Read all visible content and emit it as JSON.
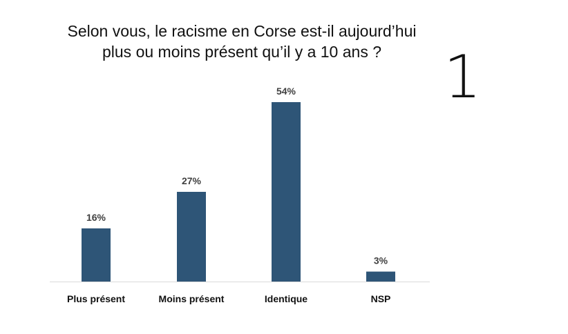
{
  "slide": {
    "title_line1": "Selon vous, le racisme en Corse est-il aujourd’hui",
    "title_line2": "plus ou moins présent qu’il y a 10 ans ?",
    "page_number": "1"
  },
  "chart_data": {
    "type": "bar",
    "title": "Selon vous, le racisme en Corse est-il aujourd’hui plus ou moins présent qu’il y a 10 ans ?",
    "categories": [
      "Plus présent",
      "Moins présent",
      "Identique",
      "NSP"
    ],
    "values": [
      16,
      27,
      54,
      3
    ],
    "data_labels": [
      "16%",
      "27%",
      "54%",
      "3%"
    ],
    "unit": "%",
    "ylim": [
      0,
      60
    ],
    "grid": false,
    "legend": "none",
    "bar_color": "#2e5577",
    "axis_color": "#d9d9d9"
  }
}
